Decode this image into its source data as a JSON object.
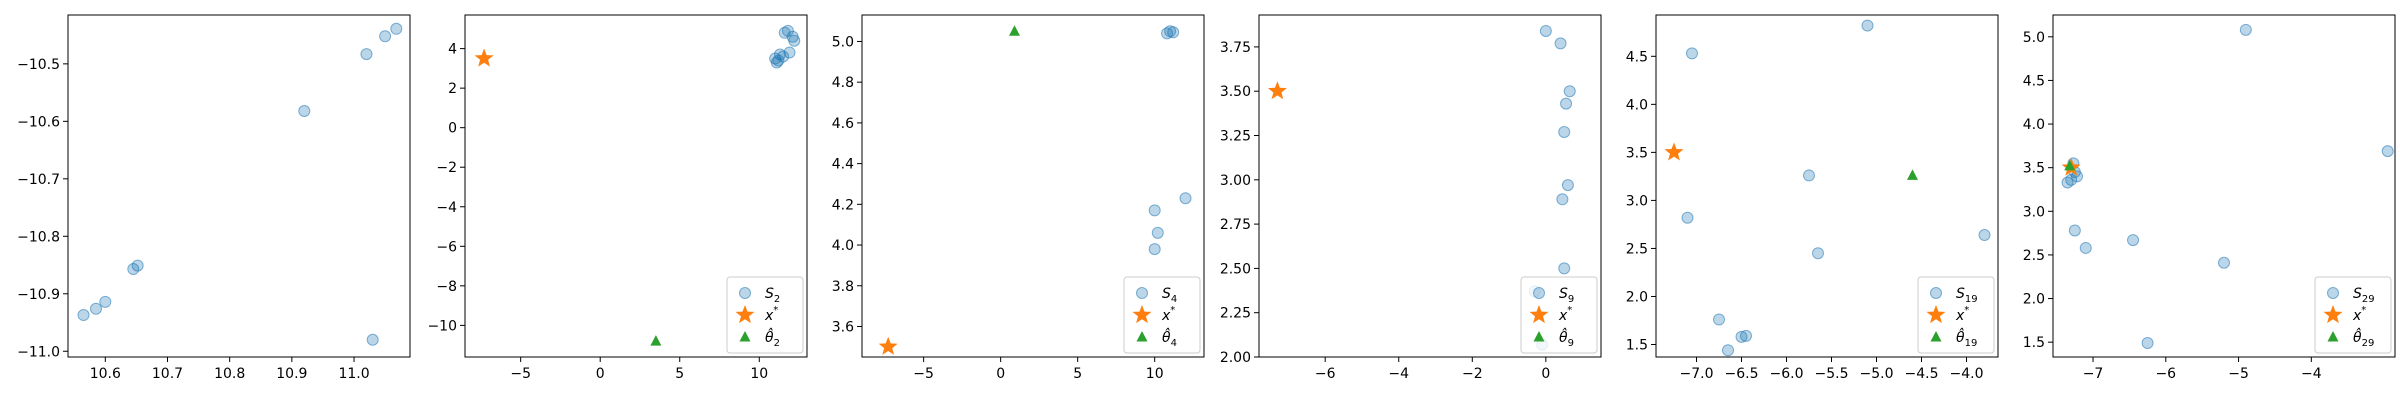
{
  "colors": {
    "scatter": "#1f77b4",
    "star": "#ff7f0e",
    "triangle": "#2ca02c",
    "axes": "#000000"
  },
  "chart_data": [
    {
      "type": "scatter",
      "title": "",
      "xlabel": "",
      "ylabel": "",
      "xlim": [
        10.54,
        11.09
      ],
      "ylim": [
        -11.01,
        -10.415
      ],
      "xticks": [
        10.6,
        10.7,
        10.8,
        10.9,
        11.0
      ],
      "yticks": [
        -11.0,
        -10.9,
        -10.8,
        -10.7,
        -10.6,
        -10.5
      ],
      "xticklabels": [
        "10.6",
        "10.7",
        "10.8",
        "10.9",
        "11.0"
      ],
      "yticklabels": [
        "−11.0",
        "−10.9",
        "−10.8",
        "−10.7",
        "−10.6",
        "−10.5"
      ],
      "series": [
        {
          "marker": "circle",
          "x": [
            10.565,
            10.585,
            10.6,
            10.645,
            10.652,
            10.92,
            11.02,
            11.05,
            11.068,
            11.03
          ],
          "y": [
            -10.937,
            -10.926,
            -10.914,
            -10.857,
            -10.851,
            -10.582,
            -10.483,
            -10.452,
            -10.439,
            -10.98
          ]
        }
      ],
      "legend": []
    },
    {
      "type": "scatter",
      "title": "",
      "xlabel": "",
      "ylabel": "",
      "xlim": [
        -8.5,
        13.0
      ],
      "ylim": [
        -11.6,
        5.7
      ],
      "xticks": [
        -5,
        0,
        5,
        10
      ],
      "yticks": [
        -10,
        -8,
        -6,
        -4,
        -2,
        0,
        2,
        4
      ],
      "xticklabels": [
        "−5",
        "0",
        "5",
        "10"
      ],
      "yticklabels": [
        "−10",
        "−8",
        "−6",
        "−4",
        "−2",
        "0",
        "2",
        "4"
      ],
      "series": [
        {
          "marker": "circle",
          "x": [
            11.2,
            11.5,
            11.3,
            11.0,
            11.1,
            11.6,
            11.8,
            12.1,
            12.2,
            11.9
          ],
          "y": [
            3.4,
            3.6,
            3.7,
            3.5,
            3.3,
            4.8,
            4.9,
            4.6,
            4.4,
            3.8
          ]
        },
        {
          "marker": "star",
          "x": [
            -7.3
          ],
          "y": [
            3.5
          ]
        },
        {
          "marker": "triangle",
          "x": [
            3.5
          ],
          "y": [
            -10.8
          ]
        }
      ],
      "legend": [
        {
          "marker": "circle",
          "label": "S",
          "sub": "2"
        },
        {
          "marker": "star",
          "label": "x",
          "sup": "*"
        },
        {
          "marker": "triangle",
          "label": "θ̂",
          "sub": "2"
        }
      ]
    },
    {
      "type": "scatter",
      "title": "",
      "xlabel": "",
      "ylabel": "",
      "xlim": [
        -9.0,
        13.2
      ],
      "ylim": [
        3.45,
        5.13
      ],
      "xticks": [
        -5,
        0,
        5,
        10
      ],
      "yticks": [
        3.6,
        3.8,
        4.0,
        4.2,
        4.4,
        4.6,
        4.8,
        5.0
      ],
      "xticklabels": [
        "−5",
        "0",
        "5",
        "10"
      ],
      "yticklabels": [
        "3.6",
        "3.8",
        "4.0",
        "4.2",
        "4.4",
        "4.6",
        "4.8",
        "5.0"
      ],
      "series": [
        {
          "marker": "circle",
          "x": [
            10.8,
            11.0,
            11.2,
            12.0,
            10.0,
            10.2,
            10.0
          ],
          "y": [
            5.04,
            5.05,
            5.045,
            4.23,
            4.17,
            4.06,
            3.98
          ]
        },
        {
          "marker": "star",
          "x": [
            -7.3
          ],
          "y": [
            3.5
          ]
        },
        {
          "marker": "triangle",
          "x": [
            0.9
          ],
          "y": [
            5.05
          ]
        }
      ],
      "legend": [
        {
          "marker": "circle",
          "label": "S",
          "sub": "4"
        },
        {
          "marker": "star",
          "label": "x",
          "sup": "*"
        },
        {
          "marker": "triangle",
          "label": "θ̂",
          "sub": "4"
        }
      ]
    },
    {
      "type": "scatter",
      "title": "",
      "xlabel": "",
      "ylabel": "",
      "xlim": [
        -7.8,
        1.5
      ],
      "ylim": [
        2.0,
        3.93
      ],
      "xticks": [
        -6,
        -4,
        -2,
        0
      ],
      "yticks": [
        2.0,
        2.25,
        2.5,
        2.75,
        3.0,
        3.25,
        3.5,
        3.75
      ],
      "xticklabels": [
        "−6",
        "−4",
        "−2",
        "0"
      ],
      "yticklabels": [
        "2.00",
        "2.25",
        "2.50",
        "2.75",
        "3.00",
        "3.25",
        "3.50",
        "3.75"
      ],
      "series": [
        {
          "marker": "circle",
          "x": [
            0.0,
            0.4,
            0.65,
            0.55,
            0.5,
            0.6,
            0.45,
            0.5,
            -0.3,
            -0.1
          ],
          "y": [
            3.84,
            3.77,
            3.5,
            3.43,
            3.27,
            2.97,
            2.89,
            2.5,
            2.37,
            2.07
          ]
        },
        {
          "marker": "star",
          "x": [
            -7.3
          ],
          "y": [
            3.5
          ]
        }
      ],
      "legend": [
        {
          "marker": "circle",
          "label": "S",
          "sub": "9"
        },
        {
          "marker": "star",
          "label": "x",
          "sup": "*"
        },
        {
          "marker": "triangle",
          "label": "θ̂",
          "sub": "9"
        }
      ]
    },
    {
      "type": "scatter",
      "title": "",
      "xlabel": "",
      "ylabel": "",
      "xlim": [
        -7.45,
        -3.65
      ],
      "ylim": [
        1.37,
        4.93
      ],
      "xticks": [
        -7.0,
        -6.5,
        -6.0,
        -5.5,
        -5.0,
        -4.5,
        -4.0
      ],
      "yticks": [
        1.5,
        2.0,
        2.5,
        3.0,
        3.5,
        4.0,
        4.5
      ],
      "xticklabels": [
        "−7.0",
        "−6.5",
        "−6.0",
        "−5.5",
        "−5.0",
        "−4.5",
        "−4.0"
      ],
      "yticklabels": [
        "1.5",
        "2.0",
        "2.5",
        "3.0",
        "3.5",
        "4.0",
        "4.5"
      ],
      "series": [
        {
          "marker": "circle",
          "x": [
            -7.05,
            -7.1,
            -5.1,
            -5.75,
            -5.65,
            -3.8,
            -6.75,
            -6.5,
            -6.45,
            -6.65
          ],
          "y": [
            4.53,
            2.82,
            4.82,
            3.26,
            2.45,
            2.64,
            1.76,
            1.58,
            1.59,
            1.44
          ]
        },
        {
          "marker": "star",
          "x": [
            -7.25
          ],
          "y": [
            3.5
          ]
        },
        {
          "marker": "triangle",
          "x": [
            -4.6
          ],
          "y": [
            3.26
          ]
        }
      ],
      "legend": [
        {
          "marker": "circle",
          "label": "S",
          "sub": "19"
        },
        {
          "marker": "star",
          "label": "x",
          "sup": "*"
        },
        {
          "marker": "triangle",
          "label": "θ̂",
          "sub": "19"
        }
      ]
    },
    {
      "type": "scatter",
      "title": "",
      "xlabel": "",
      "ylabel": "",
      "xlim": [
        -7.55,
        -2.85
      ],
      "ylim": [
        1.33,
        5.25
      ],
      "xticks": [
        -7,
        -6,
        -5,
        -4
      ],
      "yticks": [
        1.5,
        2.0,
        2.5,
        3.0,
        3.5,
        4.0,
        4.5,
        5.0
      ],
      "xticklabels": [
        "−7",
        "−6",
        "−5",
        "−4"
      ],
      "yticklabels": [
        "1.5",
        "2.0",
        "2.5",
        "3.0",
        "3.5",
        "4.0",
        "4.5",
        "5.0"
      ],
      "series": [
        {
          "marker": "circle",
          "x": [
            -7.35,
            -7.3,
            -7.25,
            -7.22,
            -7.27,
            -7.25,
            -7.1,
            -6.45,
            -5.2,
            -6.25,
            -4.9,
            -2.95
          ],
          "y": [
            3.33,
            3.36,
            3.45,
            3.4,
            3.55,
            2.78,
            2.58,
            2.67,
            2.41,
            1.49,
            5.08,
            3.69
          ]
        },
        {
          "marker": "star",
          "x": [
            -7.3
          ],
          "y": [
            3.5
          ]
        },
        {
          "marker": "triangle",
          "x": [
            -7.32
          ],
          "y": [
            3.52
          ]
        }
      ],
      "legend": [
        {
          "marker": "circle",
          "label": "S",
          "sub": "29"
        },
        {
          "marker": "star",
          "label": "x",
          "sup": "*"
        },
        {
          "marker": "triangle",
          "label": "θ̂",
          "sub": "29"
        }
      ]
    }
  ]
}
